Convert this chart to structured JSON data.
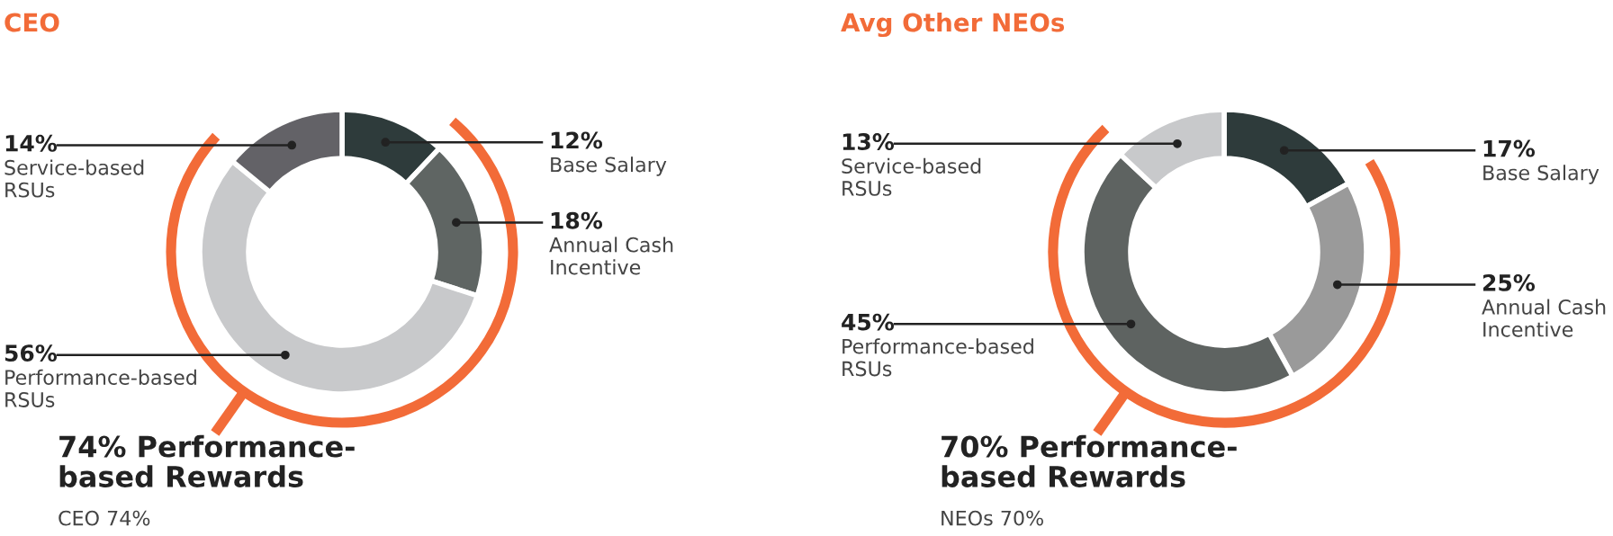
{
  "chart_data": [
    {
      "type": "donut",
      "title": "CEO",
      "categories": [
        "Base Salary",
        "Annual Cash\nIncentive",
        "Performance-based\nRSUs",
        "Service-based\nRSUs"
      ],
      "values": [
        12,
        18,
        56,
        14
      ],
      "value_labels": [
        "12%",
        "18%",
        "56%",
        "14%"
      ],
      "colors": [
        "#2e3b3b",
        "#5f6563",
        "#c8c9cb",
        "#636267"
      ],
      "annotations": [
        "74% Performance-\nbased Rewards",
        "CEO 74%"
      ]
    },
    {
      "type": "donut",
      "title": "Avg Other NEOs",
      "categories": [
        "Base Salary",
        "Annual Cash\nIncentive",
        "Performance-based\nRSUs",
        "Service-based\nRSUs"
      ],
      "values": [
        17,
        25,
        45,
        13
      ],
      "value_labels": [
        "17%",
        "25%",
        "45%",
        "13%"
      ],
      "colors": [
        "#2e3b3b",
        "#9a9a9a",
        "#5e6361",
        "#c8c9cb"
      ],
      "annotations": [
        "70% Performance-\nbased Rewards",
        "NEOs 70%"
      ]
    }
  ]
}
